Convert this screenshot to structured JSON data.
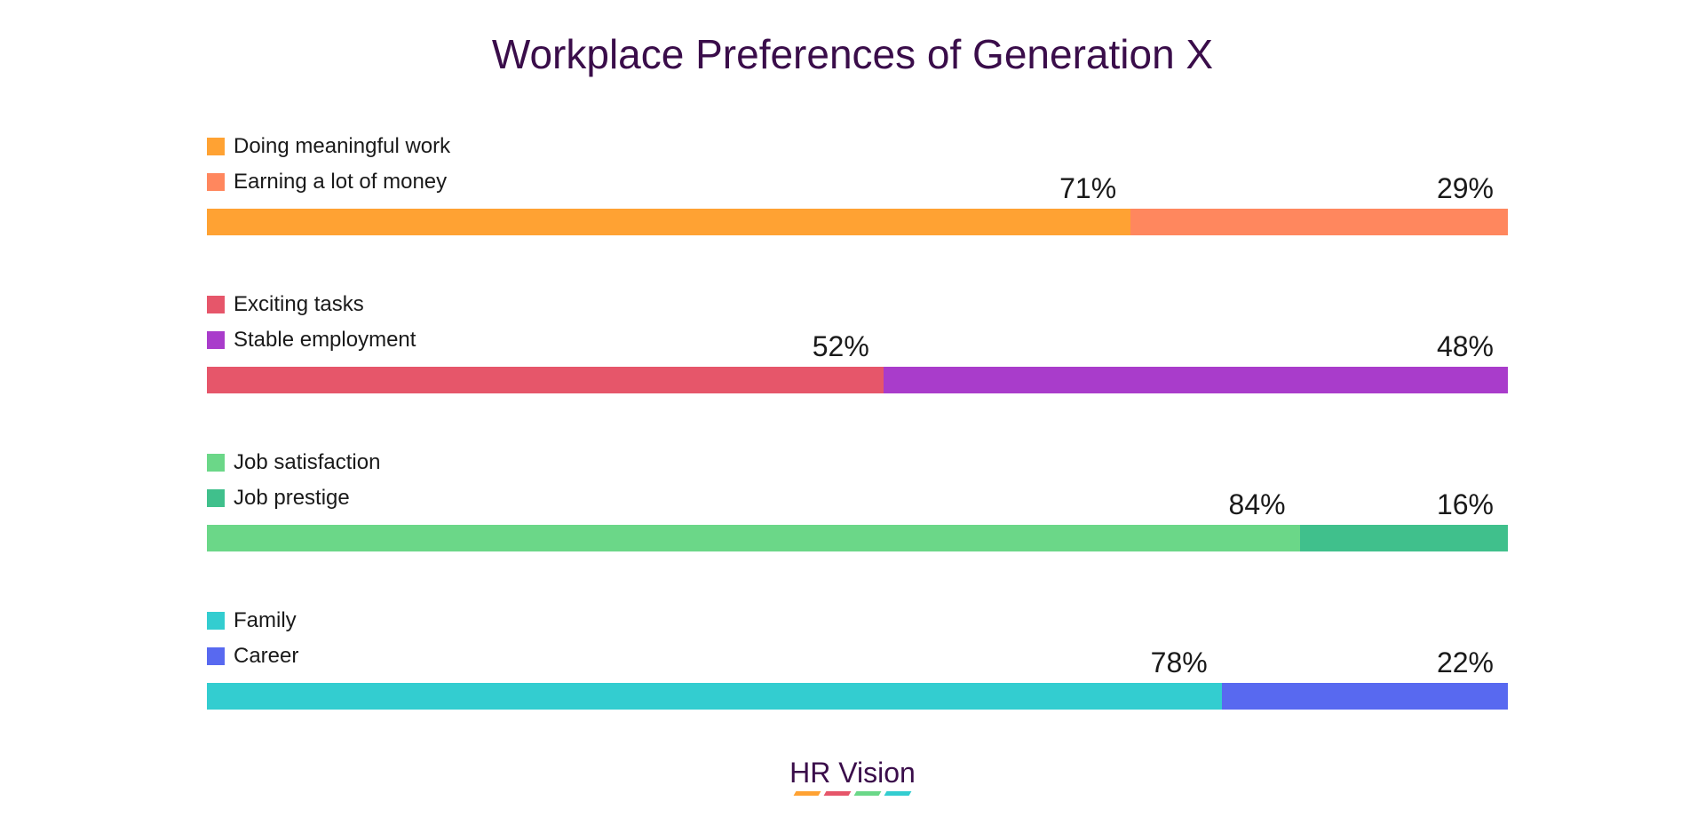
{
  "title": "Workplace Preferences of Generation X",
  "chart_data": {
    "type": "bar",
    "stacked": true,
    "orientation": "horizontal",
    "unit": "%",
    "groups": [
      {
        "series": [
          {
            "name": "Doing meaningful work",
            "value": 71,
            "color": "#FFA233"
          },
          {
            "name": "Earning a lot of money",
            "value": 29,
            "color": "#FF875E"
          }
        ]
      },
      {
        "series": [
          {
            "name": "Exciting tasks",
            "value": 52,
            "color": "#E6566A"
          },
          {
            "name": "Stable employment",
            "value": 48,
            "color": "#A93CCB"
          }
        ]
      },
      {
        "series": [
          {
            "name": "Job satisfaction",
            "value": 84,
            "color": "#6BD788"
          },
          {
            "name": "Job prestige",
            "value": 16,
            "color": "#40C08C"
          }
        ]
      },
      {
        "series": [
          {
            "name": "Family",
            "value": 78,
            "color": "#33CDD0"
          },
          {
            "name": "Career",
            "value": 22,
            "color": "#5869F0"
          }
        ]
      }
    ]
  },
  "footer": {
    "brand": "HR Vision",
    "stripe_colors": [
      "#FFA233",
      "#E6566A",
      "#6BD788",
      "#33CDD0"
    ]
  }
}
